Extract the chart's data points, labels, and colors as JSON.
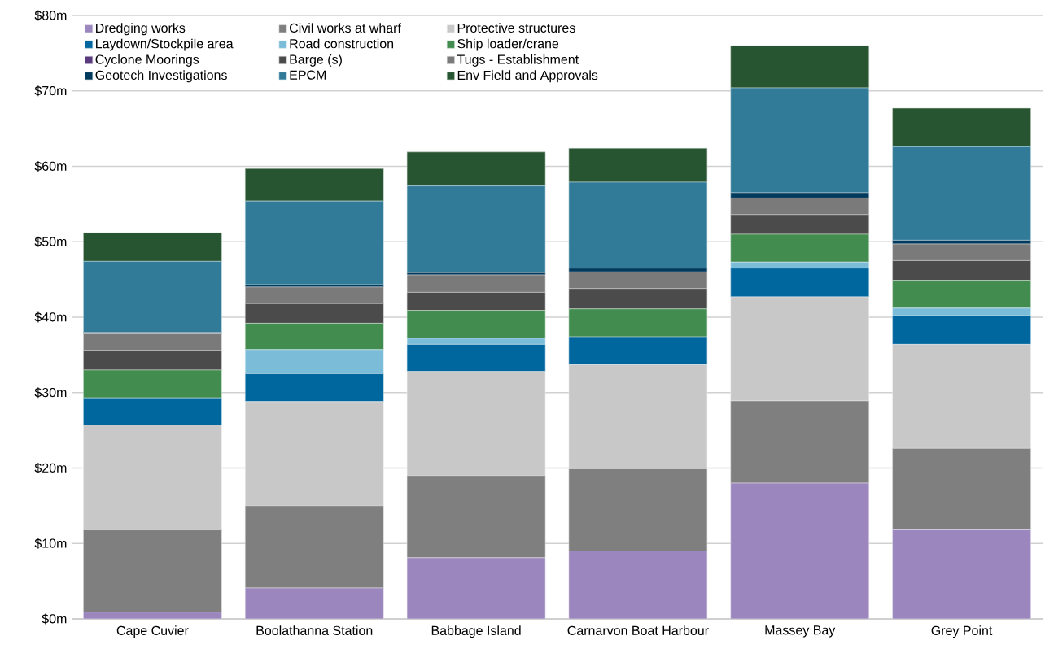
{
  "chart_data": {
    "type": "bar",
    "stacked": true,
    "grid": "y",
    "legend": "top left",
    "categories": [
      "Cape Cuvier",
      "Boolathanna Station",
      "Babbage Island",
      "Carnarvon Boat Harbour",
      "Massey Bay",
      "Grey Point"
    ],
    "ylim": [
      0,
      80
    ],
    "yticks": [
      {
        "value": 0,
        "label": "$0m"
      },
      {
        "value": 10,
        "label": "$10m"
      },
      {
        "value": 20,
        "label": "$20m"
      },
      {
        "value": 30,
        "label": "$30m"
      },
      {
        "value": 40,
        "label": "$40m"
      },
      {
        "value": 50,
        "label": "$50m"
      },
      {
        "value": 60,
        "label": "$60m"
      },
      {
        "value": 70,
        "label": "$70m"
      },
      {
        "value": 80,
        "label": "$80m"
      }
    ],
    "series": [
      {
        "name": "Dredging works",
        "color": "#9b87bd",
        "values": [
          0.9,
          4.1,
          8.1,
          9.0,
          18.0,
          11.8
        ]
      },
      {
        "name": "Civil works at wharf",
        "color": "#7f7f7f",
        "values": [
          10.9,
          10.9,
          10.9,
          10.9,
          10.9,
          10.8
        ]
      },
      {
        "name": "Protective structures",
        "color": "#c8c8c8",
        "values": [
          13.9,
          13.8,
          13.8,
          13.8,
          13.8,
          13.8
        ]
      },
      {
        "name": "Laydown/Stockpile area",
        "color": "#00679e",
        "values": [
          3.6,
          3.7,
          3.6,
          3.7,
          3.8,
          3.8
        ]
      },
      {
        "name": "Road construction",
        "color": "#7bbcd8",
        "values": [
          0,
          3.2,
          0.8,
          0,
          0.8,
          1.0
        ]
      },
      {
        "name": "Ship loader/crane",
        "color": "#438c50",
        "values": [
          3.7,
          3.5,
          3.7,
          3.7,
          3.7,
          3.7
        ]
      },
      {
        "name": "Cyclone Moorings",
        "color": "#5a3a7c",
        "values": [
          0,
          0,
          0,
          0,
          0,
          0
        ]
      },
      {
        "name": "Barge (s)",
        "color": "#4b4b4b",
        "values": [
          2.6,
          2.6,
          2.4,
          2.7,
          2.6,
          2.6
        ]
      },
      {
        "name": "Tugs - Establishment",
        "color": "#7a7a7a",
        "values": [
          2.2,
          2.2,
          2.3,
          2.2,
          2.2,
          2.2
        ]
      },
      {
        "name": "Geotech Investigations",
        "color": "#003a5c",
        "values": [
          0.2,
          0.3,
          0.3,
          0.5,
          0.7,
          0.5
        ]
      },
      {
        "name": "EPCM",
        "color": "#317b98",
        "values": [
          9.4,
          11.1,
          11.5,
          11.4,
          13.9,
          12.4
        ]
      },
      {
        "name": "Env Field and Approvals",
        "color": "#285531",
        "values": [
          3.8,
          4.3,
          4.5,
          4.5,
          5.6,
          5.1
        ]
      }
    ]
  }
}
